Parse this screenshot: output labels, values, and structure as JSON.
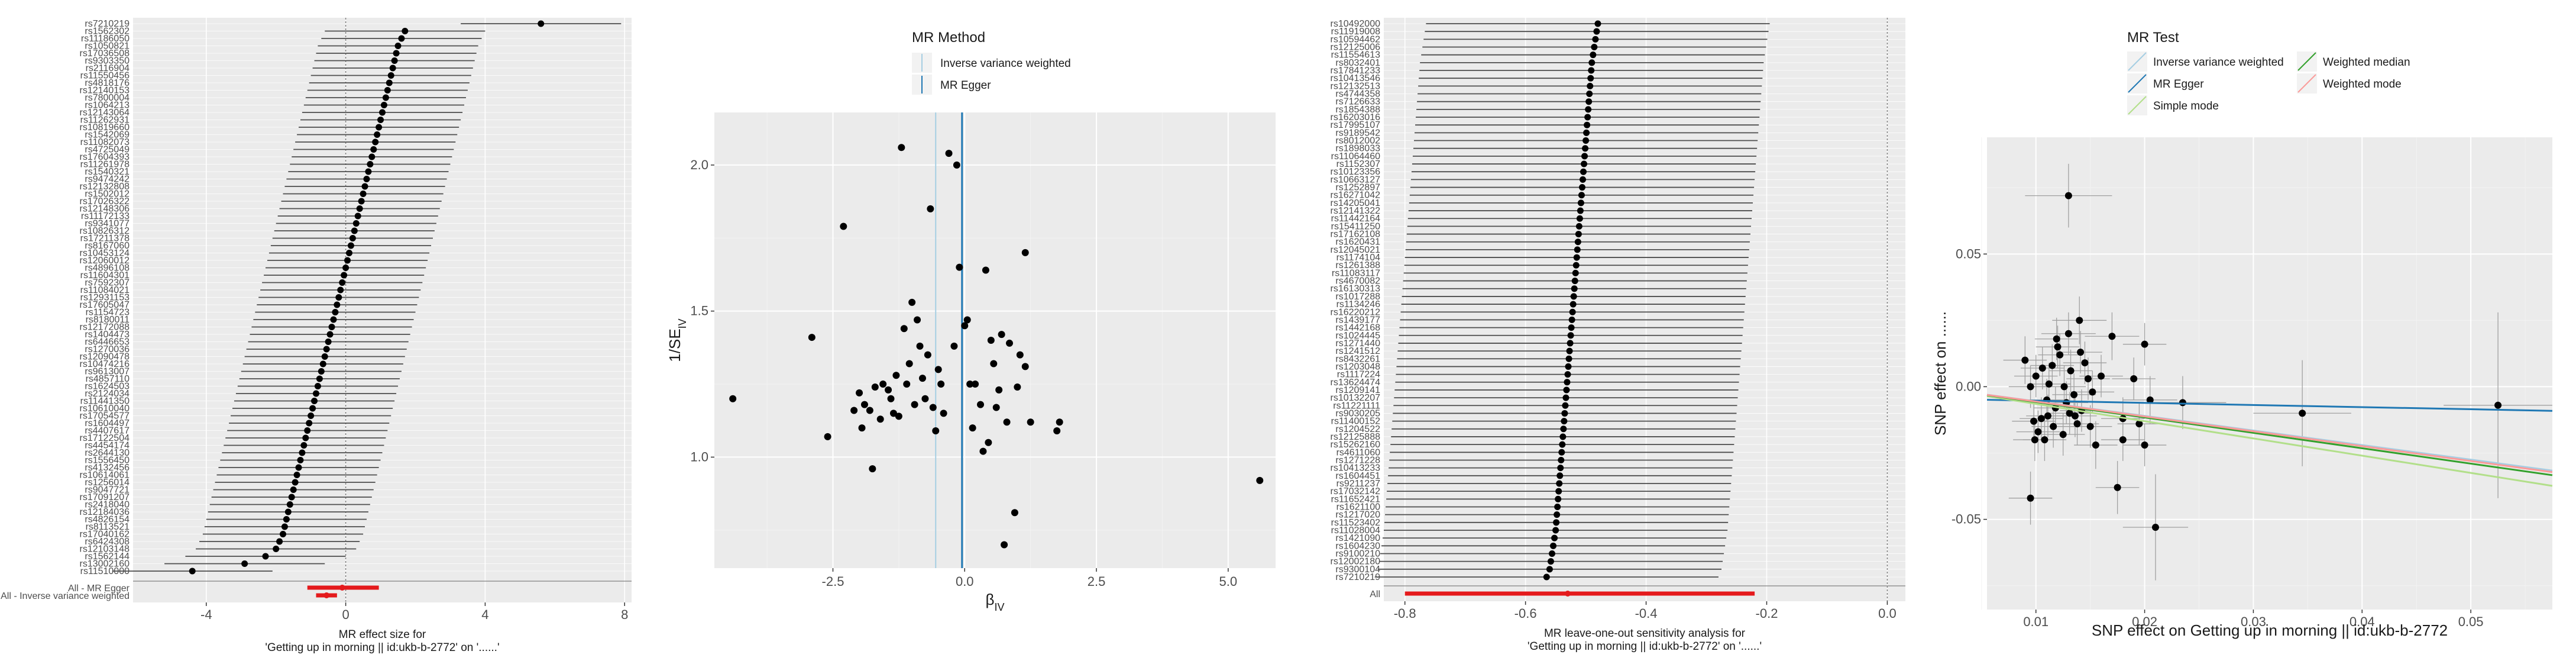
{
  "colors": {
    "panel_bg": "#ebebeb",
    "grid_major": "#ffffff",
    "grid_minor": "#f3f3f3",
    "point": "#000000",
    "ci_line": "#4d4d4d",
    "summary": "#e41a1c",
    "ivw": "#a6cee3",
    "egger": "#1f78b4",
    "simple_mode": "#b2df8a",
    "weighted_median": "#33a02c",
    "weighted_mode": "#fb9a99"
  },
  "chart_data": [
    {
      "type": "forest",
      "xlabel": "MR effect size for\n'Getting up in morning || id:ukb-b-2772' on '......'",
      "ylabel": "",
      "xlim": [
        -6.1,
        8.2
      ],
      "xticks": [
        "-4",
        "0",
        "4",
        "8"
      ],
      "summary_labels": [
        "All - MR Egger",
        "All - Inverse variance weighted"
      ],
      "summary_rows": [
        {
          "name": "All - MR Egger",
          "estimate": -0.1,
          "lo": -1.1,
          "hi": 0.95
        },
        {
          "name": "All - Inverse variance weighted",
          "estimate": -0.55,
          "lo": -0.85,
          "hi": -0.25
        }
      ],
      "snp_labels": [
        "rs7210219",
        "rs1562302",
        "rs11186050",
        "rs1050821",
        "rs17036508",
        "rs9303350",
        "rs2116904",
        "rs11550456",
        "rs4818176",
        "rs12140153",
        "rs7800004",
        "rs1064213",
        "rs12143064",
        "rs11262931",
        "rs10819660",
        "rs1542069",
        "rs11082073",
        "rs4725049",
        "rs17604393",
        "rs11261978",
        "rs1540321",
        "rs9474242",
        "rs12132808",
        "rs1502012",
        "rs17026322",
        "rs12148306",
        "rs11172133",
        "rs9341077",
        "rs10826312",
        "rs17211378",
        "rs8167060",
        "rs10453124",
        "rs12060012",
        "rs4896108",
        "rs11604301",
        "rs7592307",
        "rs11084021",
        "rs12931153",
        "rs17605047",
        "rs1154723",
        "rs8180011",
        "rs12172088",
        "rs1404473",
        "rs6446653",
        "rs1270036",
        "rs12090478",
        "rs10474216",
        "rs9613007",
        "rs4857110",
        "rs1624503",
        "rs2124034",
        "rs11441350",
        "rs10610040",
        "rs17054577",
        "rs1604497",
        "rs4407617",
        "rs17122504",
        "rs4454174",
        "rs2644130",
        "rs1556450",
        "rs4132456",
        "rs10614061",
        "rs1256014",
        "rs9047721",
        "rs17091207",
        "rs2418040",
        "rs12184036",
        "rs4826154",
        "rs8113521",
        "rs17040162",
        "rs6424308",
        "rs12103148",
        "rs1562144",
        "rs13002160",
        "rs11510000"
      ],
      "snp_estimates": [
        5.6,
        1.7,
        1.6,
        1.5,
        1.45,
        1.4,
        1.35,
        1.3,
        1.25,
        1.2,
        1.15,
        1.1,
        1.05,
        1.0,
        0.95,
        0.9,
        0.85,
        0.8,
        0.75,
        0.7,
        0.65,
        0.6,
        0.55,
        0.5,
        0.45,
        0.4,
        0.35,
        0.3,
        0.25,
        0.2,
        0.15,
        0.1,
        0.05,
        0.0,
        -0.05,
        -0.1,
        -0.15,
        -0.2,
        -0.25,
        -0.3,
        -0.35,
        -0.4,
        -0.45,
        -0.5,
        -0.55,
        -0.6,
        -0.65,
        -0.7,
        -0.75,
        -0.8,
        -0.85,
        -0.9,
        -0.95,
        -1.0,
        -1.05,
        -1.1,
        -1.15,
        -1.2,
        -1.25,
        -1.3,
        -1.35,
        -1.4,
        -1.45,
        -1.5,
        -1.55,
        -1.6,
        -1.65,
        -1.7,
        -1.75,
        -1.8,
        -1.9,
        -2.0,
        -2.3,
        -2.9,
        -4.4
      ],
      "snp_halfwidth": 2.3
    },
    {
      "type": "scatter",
      "subtype": "funnel",
      "xlabel": "βIV",
      "ylabel": "1/SEIV",
      "xlim": [
        -4.75,
        5.9
      ],
      "ylim": [
        0.62,
        2.18
      ],
      "xticks": [
        -2.5,
        0.0,
        2.5,
        5.0
      ],
      "yticks": [
        1.0,
        1.5,
        2.0
      ],
      "legend_title": "MR Method",
      "legend_position": "top",
      "legend_items": [
        "Inverse variance weighted",
        "MR Egger"
      ],
      "vlines": [
        {
          "method": "Inverse variance weighted",
          "x": -0.55
        },
        {
          "method": "MR Egger",
          "x": -0.05
        }
      ],
      "points": [
        [
          -4.4,
          1.2
        ],
        [
          -2.9,
          1.41
        ],
        [
          -2.6,
          1.07
        ],
        [
          -2.3,
          1.79
        ],
        [
          -2.1,
          1.16
        ],
        [
          -2.0,
          1.22
        ],
        [
          -1.95,
          1.1
        ],
        [
          -1.9,
          1.18
        ],
        [
          -1.8,
          1.16
        ],
        [
          -1.75,
          0.96
        ],
        [
          -1.7,
          1.24
        ],
        [
          -1.6,
          1.13
        ],
        [
          -1.55,
          1.25
        ],
        [
          -1.45,
          1.23
        ],
        [
          -1.4,
          1.2
        ],
        [
          -1.35,
          1.15
        ],
        [
          -1.3,
          1.28
        ],
        [
          -1.25,
          1.14
        ],
        [
          -1.2,
          2.06
        ],
        [
          -1.15,
          1.44
        ],
        [
          -1.1,
          1.25
        ],
        [
          -1.05,
          1.32
        ],
        [
          -1.0,
          1.53
        ],
        [
          -0.95,
          1.18
        ],
        [
          -0.9,
          1.47
        ],
        [
          -0.85,
          1.38
        ],
        [
          -0.8,
          1.27
        ],
        [
          -0.75,
          1.2
        ],
        [
          -0.7,
          1.35
        ],
        [
          -0.65,
          1.85
        ],
        [
          -0.6,
          1.17
        ],
        [
          -0.55,
          1.09
        ],
        [
          -0.5,
          1.3
        ],
        [
          -0.45,
          1.25
        ],
        [
          -0.4,
          1.15
        ],
        [
          -0.3,
          2.04
        ],
        [
          -0.2,
          1.38
        ],
        [
          -0.15,
          2.0
        ],
        [
          -0.1,
          1.65
        ],
        [
          0.0,
          1.45
        ],
        [
          0.05,
          1.47
        ],
        [
          0.1,
          1.25
        ],
        [
          0.15,
          1.1
        ],
        [
          0.2,
          1.25
        ],
        [
          0.3,
          1.18
        ],
        [
          0.35,
          1.02
        ],
        [
          0.4,
          1.64
        ],
        [
          0.45,
          1.05
        ],
        [
          0.5,
          1.4
        ],
        [
          0.55,
          1.32
        ],
        [
          0.6,
          1.17
        ],
        [
          0.65,
          1.23
        ],
        [
          0.7,
          1.42
        ],
        [
          0.75,
          0.7
        ],
        [
          0.8,
          1.12
        ],
        [
          0.85,
          1.39
        ],
        [
          0.95,
          0.81
        ],
        [
          1.0,
          1.24
        ],
        [
          1.05,
          1.35
        ],
        [
          1.15,
          1.31
        ],
        [
          1.25,
          1.12
        ],
        [
          1.15,
          1.7
        ],
        [
          1.75,
          1.09
        ],
        [
          1.8,
          1.12
        ],
        [
          5.6,
          0.92
        ]
      ]
    },
    {
      "type": "forest",
      "subtype": "leave-one-out",
      "xlabel": "MR leave-one-out sensitivity analysis for\n'Getting up in morning || id:ukb-b-2772' on '......'",
      "ylabel": "",
      "xlim": [
        -0.835,
        0.03
      ],
      "xticks": [
        "-0.8",
        "-0.6",
        "-0.4",
        "-0.2",
        "0.0"
      ],
      "summary_labels": [
        "All"
      ],
      "summary_rows": [
        {
          "name": "All",
          "estimate": -0.53,
          "lo": -0.8,
          "hi": -0.22
        }
      ],
      "snp_labels": [
        "rs10492000",
        "rs11919008",
        "rs10594462",
        "rs12125006",
        "rs11554613",
        "rs8032401",
        "rs17841233",
        "rs10413546",
        "rs12132513",
        "rs4744358",
        "rs7126633",
        "rs1854388",
        "rs16203016",
        "rs17995107",
        "rs9189542",
        "rs8012002",
        "rs1898033",
        "rs11064460",
        "rs1152307",
        "rs10123356",
        "rs10663127",
        "rs1252897",
        "rs16271042",
        "rs14205041",
        "rs12141322",
        "rs11442164",
        "rs15411250",
        "rs17162108",
        "rs1620431",
        "rs12045021",
        "rs1174104",
        "rs1261388",
        "rs11083117",
        "rs4670082",
        "rs16130313",
        "rs1017288",
        "rs1134246",
        "rs16220212",
        "rs1439177",
        "rs1442168",
        "rs1024445",
        "rs1271440",
        "rs1241512",
        "rs8432261",
        "rs1203048",
        "rs1117224",
        "rs13624474",
        "rs1209141",
        "rs10132207",
        "rs11221111",
        "rs9030205",
        "rs11400152",
        "rs1204522",
        "rs12125888",
        "rs15262160",
        "rs4611060",
        "rs1271228",
        "rs10413233",
        "rs1604451",
        "rs9211237",
        "rs17032142",
        "rs11652421",
        "rs1621100",
        "rs1217020",
        "rs11523402",
        "rs11028004",
        "rs1421090",
        "rs1604230",
        "rs9100210",
        "rs12002180",
        "rs9300104",
        "rs7210219"
      ],
      "snp_estimates": [
        -0.48,
        -0.482,
        -0.484,
        -0.486,
        -0.488,
        -0.49,
        -0.491,
        -0.492,
        -0.493,
        -0.494,
        -0.495,
        -0.496,
        -0.497,
        -0.498,
        -0.499,
        -0.5,
        -0.501,
        -0.502,
        -0.503,
        -0.504,
        -0.505,
        -0.506,
        -0.507,
        -0.508,
        -0.509,
        -0.51,
        -0.511,
        -0.512,
        -0.513,
        -0.514,
        -0.515,
        -0.516,
        -0.517,
        -0.518,
        -0.519,
        -0.52,
        -0.521,
        -0.522,
        -0.523,
        -0.524,
        -0.525,
        -0.526,
        -0.527,
        -0.528,
        -0.529,
        -0.53,
        -0.531,
        -0.532,
        -0.533,
        -0.534,
        -0.535,
        -0.536,
        -0.537,
        -0.538,
        -0.539,
        -0.54,
        -0.541,
        -0.542,
        -0.543,
        -0.544,
        -0.545,
        -0.546,
        -0.547,
        -0.548,
        -0.549,
        -0.55,
        -0.552,
        -0.554,
        -0.556,
        -0.558,
        -0.56,
        -0.565
      ],
      "snp_halfwidth": 0.285
    },
    {
      "type": "scatter",
      "xlabel": "SNP effect on Getting up in morning || id:ukb-b-2772",
      "ylabel": "SNP effect on ......",
      "xlim": [
        0.0055,
        0.0575
      ],
      "ylim": [
        -0.084,
        0.094
      ],
      "xticks": [
        0.01,
        0.02,
        0.03,
        0.04,
        0.05
      ],
      "yticks": [
        -0.05,
        0.0,
        0.05
      ],
      "legend_title": "MR Test",
      "legend_position": "top",
      "legend_items": [
        "Inverse variance weighted",
        "MR Egger",
        "Simple mode",
        "Weighted median",
        "Weighted mode"
      ],
      "lines": [
        {
          "method": "Inverse variance weighted",
          "intercept": 0.0,
          "slope": -0.55
        },
        {
          "method": "MR Egger",
          "intercept": -0.0045,
          "slope": -0.08
        },
        {
          "method": "Simple mode",
          "intercept": 0.0,
          "slope": -0.65
        },
        {
          "method": "Weighted median",
          "intercept": 0.0,
          "slope": -0.58
        },
        {
          "method": "Weighted mode",
          "intercept": 0.0,
          "slope": -0.56
        }
      ],
      "points": [
        [
          0.013,
          0.072,
          0.004,
          0.012
        ],
        [
          0.009,
          0.01,
          0.002,
          0.009
        ],
        [
          0.0095,
          -0.042,
          0.002,
          0.01
        ],
        [
          0.01,
          0.004,
          0.002,
          0.008
        ],
        [
          0.0105,
          -0.012,
          0.002,
          0.008
        ],
        [
          0.011,
          -0.005,
          0.002,
          0.008
        ],
        [
          0.0115,
          0.008,
          0.002,
          0.008
        ],
        [
          0.012,
          0.015,
          0.002,
          0.008
        ],
        [
          0.0125,
          -0.018,
          0.002,
          0.008
        ],
        [
          0.013,
          0.02,
          0.0025,
          0.008
        ],
        [
          0.0135,
          -0.003,
          0.002,
          0.008
        ],
        [
          0.014,
          0.025,
          0.0025,
          0.009
        ],
        [
          0.0145,
          0.009,
          0.002,
          0.008
        ],
        [
          0.015,
          -0.015,
          0.002,
          0.008
        ],
        [
          0.0155,
          -0.022,
          0.002,
          0.009
        ],
        [
          0.016,
          0.004,
          0.002,
          0.008
        ],
        [
          0.017,
          0.019,
          0.0025,
          0.009
        ],
        [
          0.0175,
          -0.038,
          0.002,
          0.01
        ],
        [
          0.018,
          -0.012,
          0.002,
          0.008
        ],
        [
          0.018,
          -0.02,
          0.002,
          0.008
        ],
        [
          0.019,
          0.003,
          0.002,
          0.008
        ],
        [
          0.0195,
          -0.014,
          0.002,
          0.008
        ],
        [
          0.02,
          -0.022,
          0.002,
          0.008
        ],
        [
          0.02,
          0.016,
          0.002,
          0.008
        ],
        [
          0.0205,
          -0.005,
          0.0025,
          0.009
        ],
        [
          0.021,
          -0.053,
          0.003,
          0.02
        ],
        [
          0.0235,
          -0.006,
          0.004,
          0.01
        ],
        [
          0.0345,
          -0.01,
          0.0045,
          0.02
        ],
        [
          0.0525,
          -0.007,
          0.005,
          0.035
        ],
        [
          0.0095,
          0.0,
          0.002,
          0.008
        ],
        [
          0.0098,
          -0.013,
          0.002,
          0.008
        ],
        [
          0.0102,
          -0.017,
          0.002,
          0.008
        ],
        [
          0.0108,
          -0.02,
          0.002,
          0.008
        ],
        [
          0.0112,
          0.001,
          0.002,
          0.008
        ],
        [
          0.0118,
          -0.008,
          0.002,
          0.008
        ],
        [
          0.0122,
          0.012,
          0.002,
          0.008
        ],
        [
          0.0128,
          -0.006,
          0.002,
          0.008
        ],
        [
          0.0132,
          0.006,
          0.002,
          0.008
        ],
        [
          0.0138,
          -0.014,
          0.002,
          0.008
        ],
        [
          0.0142,
          -0.009,
          0.002,
          0.008
        ],
        [
          0.0148,
          0.003,
          0.002,
          0.008
        ],
        [
          0.0152,
          -0.002,
          0.002,
          0.008
        ],
        [
          0.0099,
          -0.02,
          0.002,
          0.008
        ],
        [
          0.0106,
          0.007,
          0.002,
          0.008
        ],
        [
          0.0116,
          -0.015,
          0.002,
          0.008
        ],
        [
          0.0126,
          0.0,
          0.002,
          0.008
        ],
        [
          0.0136,
          -0.011,
          0.002,
          0.008
        ],
        [
          0.0119,
          0.018,
          0.002,
          0.008
        ],
        [
          0.0131,
          -0.01,
          0.002,
          0.008
        ],
        [
          0.0111,
          -0.011,
          0.002,
          0.008
        ],
        [
          0.0141,
          0.013,
          0.002,
          0.008
        ]
      ]
    }
  ]
}
